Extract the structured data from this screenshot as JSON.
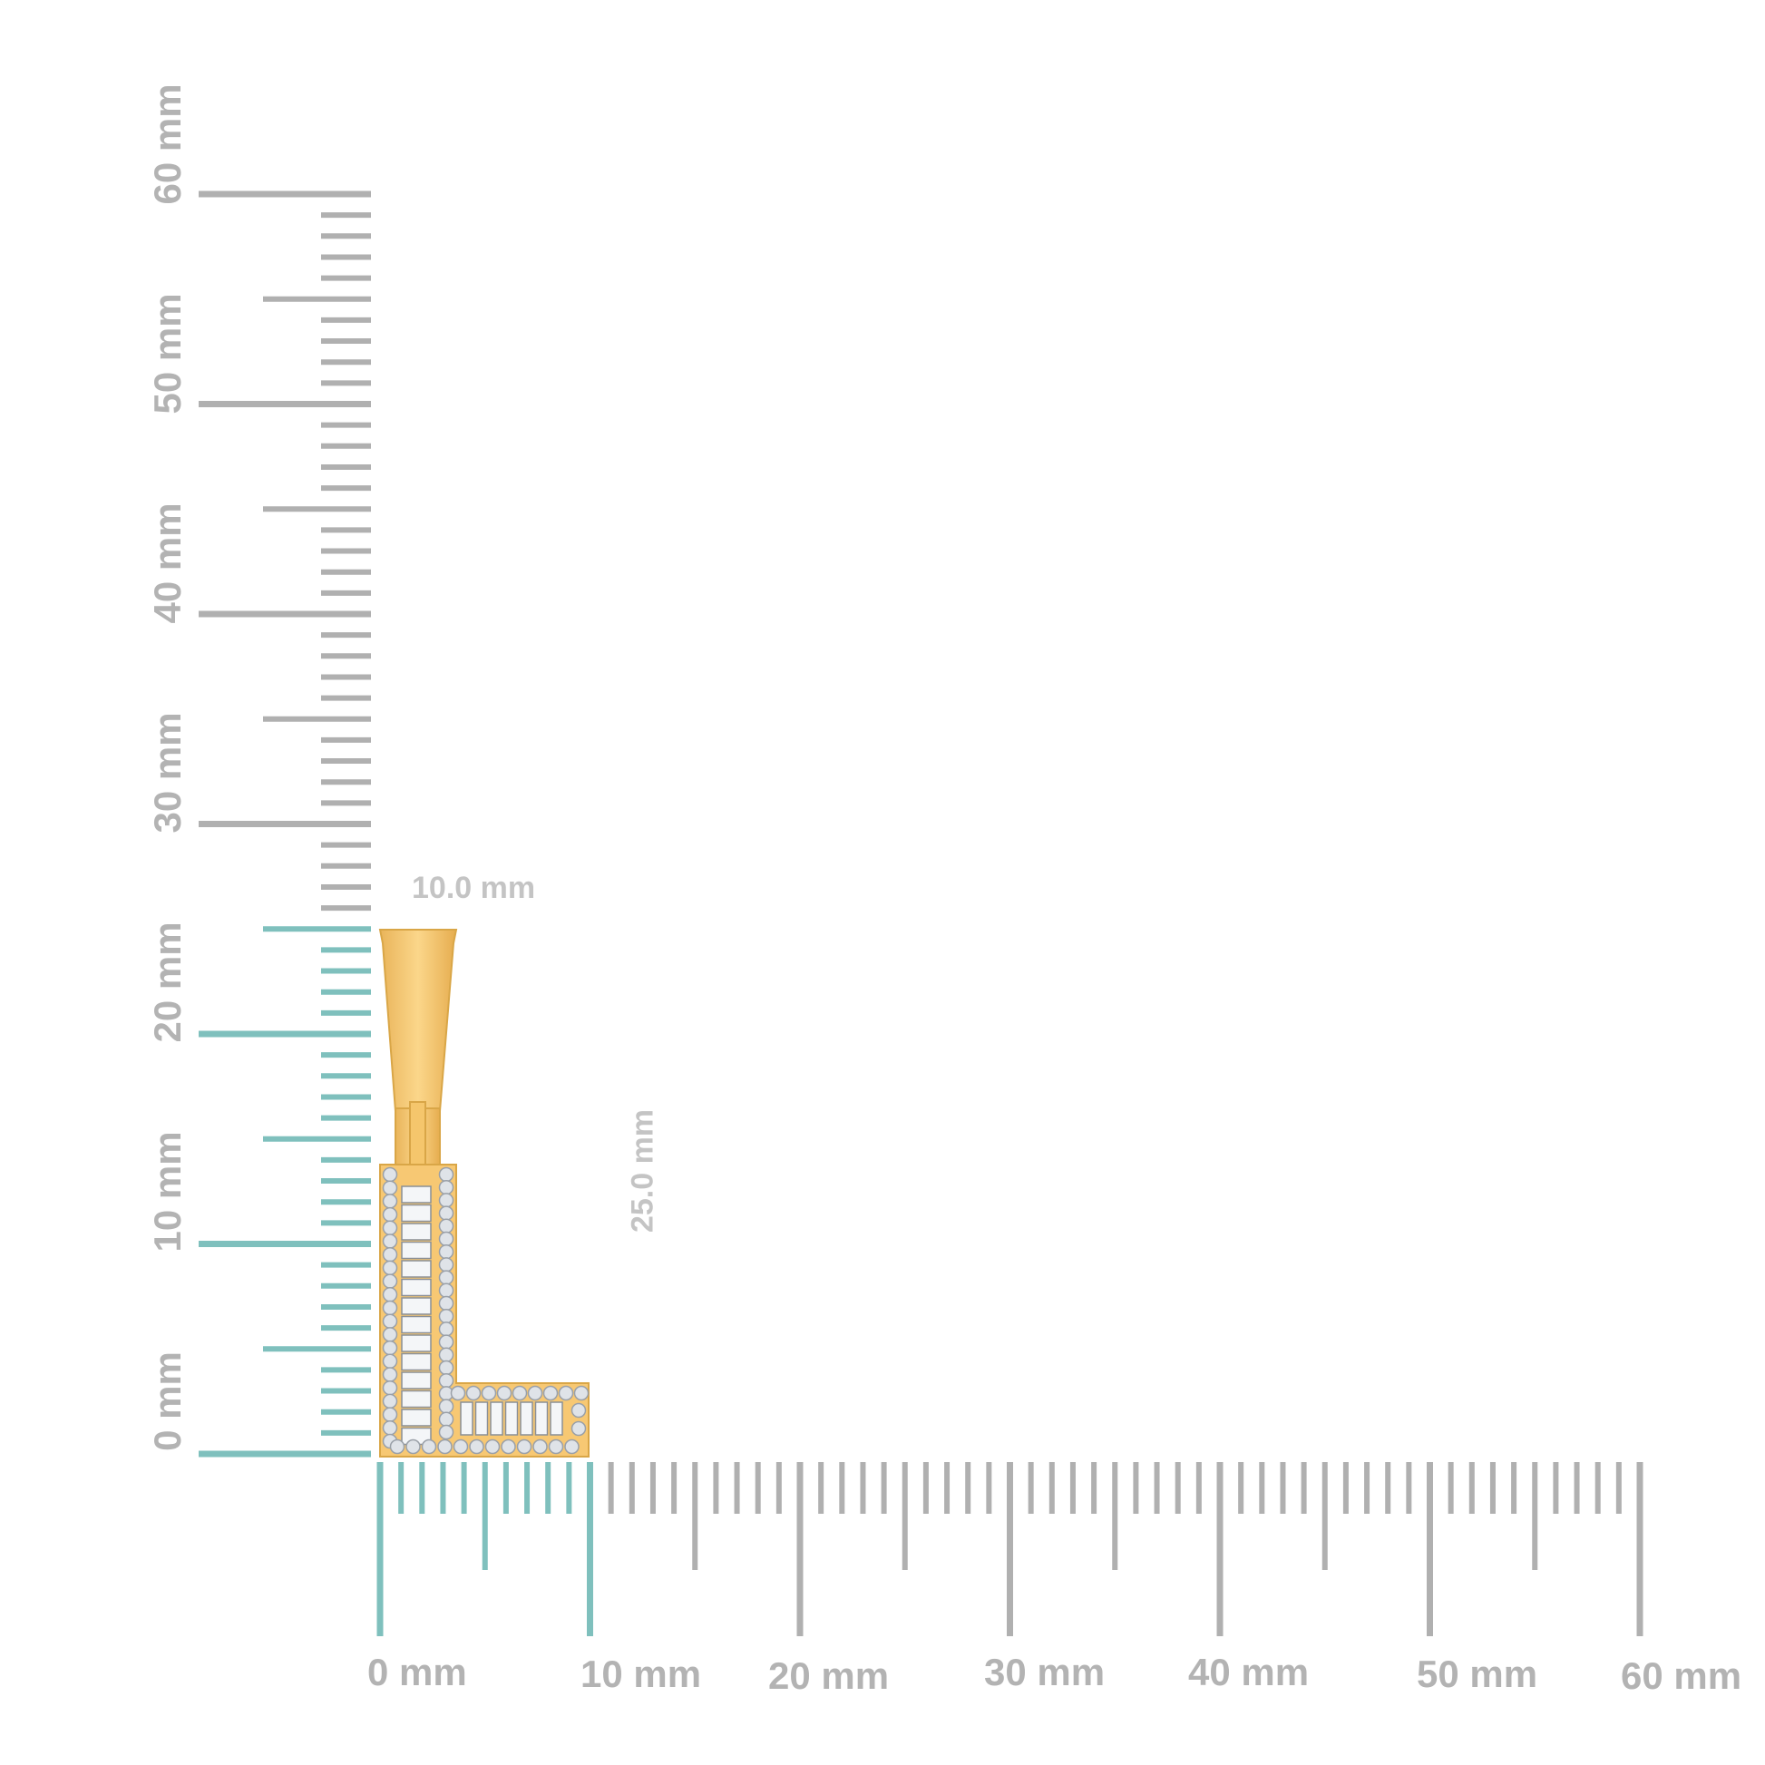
{
  "vertical_ruler": {
    "labels": [
      "0 mm",
      "10 mm",
      "20 mm",
      "30 mm",
      "40 mm",
      "50 mm",
      "60 mm"
    ],
    "highlight_to_mm": 25
  },
  "horizontal_ruler": {
    "labels": [
      "0 mm",
      "10 mm",
      "20 mm",
      "30 mm",
      "40 mm",
      "50 mm",
      "60 mm"
    ],
    "highlight_to_mm": 10
  },
  "dimensions": {
    "width": "10.0 mm",
    "height": "25.0 mm"
  },
  "colors": {
    "ruler": "#b0b0b0",
    "highlight": "#7fc0bd",
    "gold": "#f7c873",
    "gold_dark": "#d9a647",
    "diamond": "#dfe3e8"
  },
  "product": "letter-L-pendant"
}
